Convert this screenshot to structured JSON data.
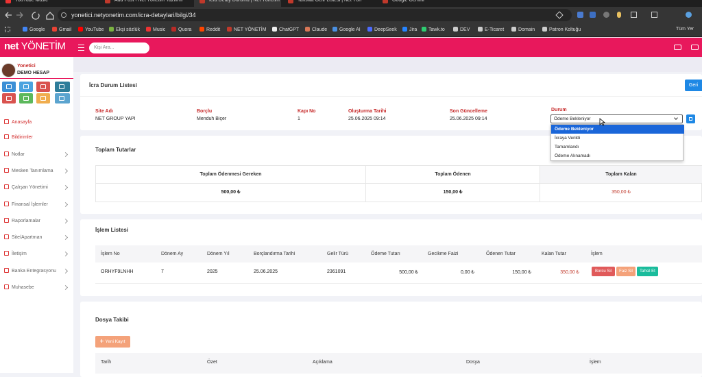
{
  "browser": {
    "tabs": [
      "YouTube Music",
      "Add Post ‹ Net Yönetim Yazılımı",
      "İcra Detay Durumu | Net Yönetim",
      "Tahsilat Gelir Listesi | Net Yön",
      "Google Gemini"
    ],
    "url": "yonetici.netyonetim.com/icra-detaylari/bilgi/34",
    "bookmarks": [
      "Google",
      "Gmail",
      "YouTube",
      "Ekşi sözlük",
      "Music",
      "Quora",
      "Reddit",
      "NET YÖNETİM",
      "ChatGPT",
      "Claude",
      "Google AI",
      "DeepSeek",
      "Jira",
      "Tawk.to",
      "DEV",
      "E-Ticaret",
      "Domain",
      "Patron Koltuğu"
    ],
    "all_bookmarks": "Tüm Yer"
  },
  "header": {
    "logo": [
      "net",
      "YÖNETİM"
    ],
    "search_placeholder": "Kişi Ara..."
  },
  "sidebar": {
    "user_name": "Yonetici",
    "account": "DEMO HESAP",
    "menu": [
      "Anasayfa",
      "Bildirimler",
      "Notlar",
      "Mesken Tanımlama",
      "Çalışan Yönetimi",
      "Finansal İşlemler",
      "Raporlamalar",
      "Site/Apartman",
      "İletişim",
      "Banka Entegrasyonu",
      "Muhasebe"
    ]
  },
  "page": {
    "title": "İcra Durum Listesi",
    "back_button": "Geri",
    "fields": [
      {
        "label": "Site Adı",
        "value": "NET GROUP YAPI"
      },
      {
        "label": "Borçlu",
        "value": "Menduh Biçer"
      },
      {
        "label": "Kapı No",
        "value": "1"
      },
      {
        "label": "Oluşturma Tarihi",
        "value": "25.06.2025 09:14"
      },
      {
        "label": "Son Güncelleme",
        "value": "25.06.2025 09:14"
      }
    ],
    "status": {
      "label": "Durum",
      "selected": "Ödeme Bekleniyor",
      "options": [
        "Ödeme Bekleniyor",
        "İcraya Verildi",
        "Tamamlandı",
        "Ödeme Alınamadı"
      ]
    }
  },
  "totals": {
    "title": "Toplam Tutarlar",
    "headers": [
      "Toplam Ödenmesi Gereken",
      "Toplam Ödenen",
      "Toplam Kalan"
    ],
    "values": [
      "500,00 ₺",
      "150,00 ₺",
      "350,00 ₺"
    ]
  },
  "transactions": {
    "title": "İşlem Listesi",
    "headers": [
      "İşlem No",
      "Dönem Ay",
      "Dönem Yıl",
      "Borçlandırma Tarihi",
      "Gelir Türü",
      "Ödeme Tutarı",
      "Gecikme Faizi",
      "Ödenen Tutar",
      "Kalan Tutar",
      "İşlem"
    ],
    "rows": [
      [
        "ORHYF9LNHH",
        "7",
        "2025",
        "25.06.2025",
        "2361091",
        "500,00 ₺",
        "0,00 ₺",
        "150,00 ₺",
        "350,00 ₺"
      ]
    ],
    "actions": [
      "Borcu Sil",
      "Faiz Sil",
      "Tahsil Et"
    ]
  },
  "files": {
    "title": "Dosya Takibi",
    "new_button": "Yeni Kayıt",
    "headers": [
      "Tarih",
      "Özet",
      "Açıklama",
      "Dosya",
      "İşlem"
    ]
  }
}
